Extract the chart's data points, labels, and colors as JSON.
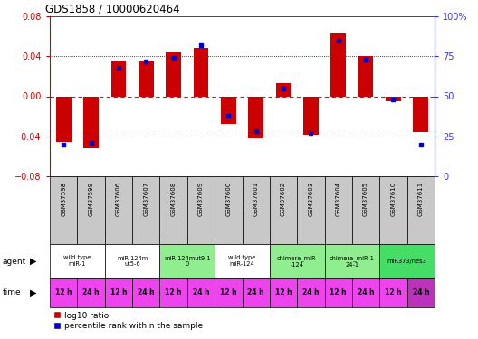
{
  "title": "GDS1858 / 10000620464",
  "samples": [
    "GSM37598",
    "GSM37599",
    "GSM37606",
    "GSM37607",
    "GSM37608",
    "GSM37609",
    "GSM37600",
    "GSM37601",
    "GSM37602",
    "GSM37603",
    "GSM37604",
    "GSM37605",
    "GSM37610",
    "GSM37611"
  ],
  "log10_ratio": [
    -0.046,
    -0.052,
    0.036,
    0.035,
    0.044,
    0.048,
    -0.028,
    -0.042,
    0.013,
    -0.038,
    0.063,
    0.04,
    -0.005,
    -0.036
  ],
  "percentile_rank": [
    20,
    21,
    68,
    72,
    74,
    82,
    38,
    28,
    55,
    27,
    85,
    73,
    48,
    20
  ],
  "ylim": [
    -0.08,
    0.08
  ],
  "yticks_left": [
    -0.08,
    -0.04,
    0,
    0.04,
    0.08
  ],
  "yticks_right": [
    0,
    25,
    50,
    75,
    100
  ],
  "agents": [
    {
      "label": "wild type\nmiR-1",
      "span": [
        0,
        2
      ],
      "color": "#ffffff"
    },
    {
      "label": "miR-124m\nut5-6",
      "span": [
        2,
        4
      ],
      "color": "#ffffff"
    },
    {
      "label": "miR-124mut9-1\n0",
      "span": [
        4,
        6
      ],
      "color": "#90ee90"
    },
    {
      "label": "wild type\nmiR-124",
      "span": [
        6,
        8
      ],
      "color": "#ffffff"
    },
    {
      "label": "chimera_miR-\n-124",
      "span": [
        8,
        10
      ],
      "color": "#90ee90"
    },
    {
      "label": "chimera_miR-1\n24-1",
      "span": [
        10,
        12
      ],
      "color": "#90ee90"
    },
    {
      "label": "miR373/hes3",
      "span": [
        12,
        14
      ],
      "color": "#44dd66"
    }
  ],
  "times": [
    "12 h",
    "24 h",
    "12 h",
    "24 h",
    "12 h",
    "24 h",
    "12 h",
    "24 h",
    "12 h",
    "24 h",
    "12 h",
    "24 h",
    "12 h",
    "24 h"
  ],
  "bar_color": "#cc0000",
  "dot_color": "#0000cc",
  "tick_label_color_left": "#cc0000",
  "tick_label_color_right": "#3333ff",
  "sample_row_color": "#c8c8c8",
  "time_row_color": "#ee44ee",
  "time_row_color_last": "#bb33bb",
  "legend_square_size": 6
}
